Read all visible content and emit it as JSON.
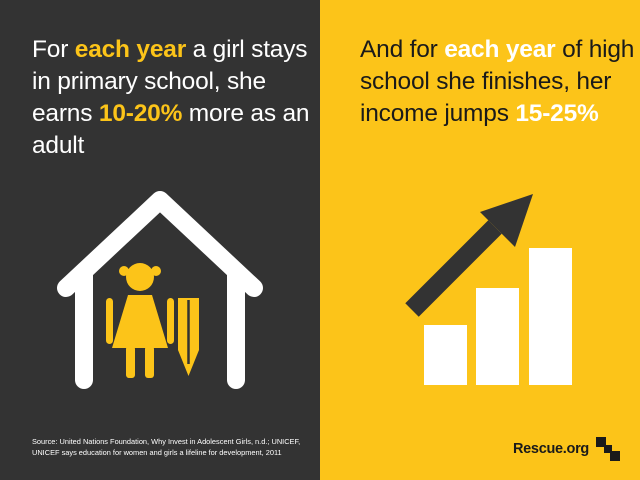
{
  "left_panel": {
    "headline": {
      "part1": "For ",
      "highlight1": "each year",
      "part2": " a girl stays in primary school, she earns ",
      "highlight2": "10-20%",
      "part3": " more as an adult"
    },
    "source": "Source: United Nations Foundation, Why Invest in Adolescent Girls, n.d.; UNICEF, UNICEF says education for women and girls a lifeline for development, 2011"
  },
  "right_panel": {
    "headline": {
      "part1": "And for ",
      "highlight1": "each year",
      "part2": " of high school she finishes, her income jumps ",
      "highlight2": "15-25%"
    },
    "brand": "Rescue.org"
  },
  "colors": {
    "dark": "#333333",
    "accent": "#FCC419",
    "white": "#FFFFFF",
    "black": "#1A1A1A"
  },
  "icons": {
    "left": "house-girl-pencil-icon",
    "right": "growth-bar-chart-arrow-icon",
    "logo": "irc-logo-icon"
  }
}
